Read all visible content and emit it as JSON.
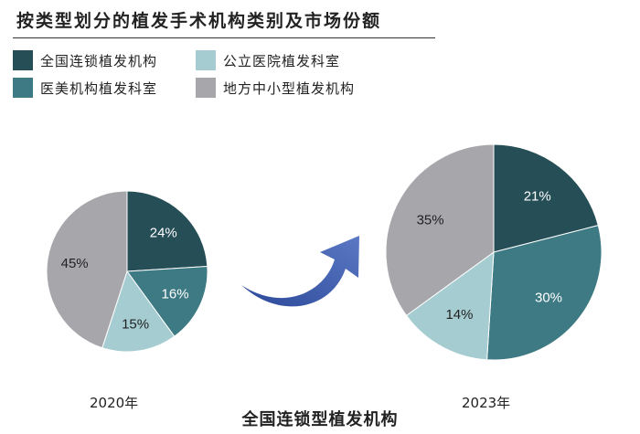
{
  "title": "按类型划分的植发手术机构类别及市场份额",
  "legend": [
    {
      "label": "全国连锁植发机构",
      "color": "#264e57"
    },
    {
      "label": "公立医院植发科室",
      "color": "#a5ccd1"
    },
    {
      "label": "医美机构植发科室",
      "color": "#3e7a83"
    },
    {
      "label": "地方中小型植发机构",
      "color": "#a7a7ab"
    }
  ],
  "caption": "全国连锁型植发机构",
  "chart_data": [
    {
      "type": "pie",
      "label": "2020年",
      "categories": [
        "全国连锁植发机构",
        "医美机构植发科室",
        "公立医院植发科室",
        "地方中小型植发机构"
      ],
      "values": [
        24,
        16,
        15,
        45
      ],
      "value_labels": [
        "24%",
        "16%",
        "15%",
        "45%"
      ],
      "colors": [
        "#264e57",
        "#3e7a83",
        "#a5ccd1",
        "#a7a7ab"
      ]
    },
    {
      "type": "pie",
      "label": "2023年",
      "categories": [
        "全国连锁植发机构",
        "医美机构植发科室",
        "公立医院植发科室",
        "地方中小型植发机构"
      ],
      "values": [
        21,
        30,
        14,
        35
      ],
      "value_labels": [
        "21%",
        "30%",
        "14%",
        "35%"
      ],
      "colors": [
        "#264e57",
        "#3e7a83",
        "#a5ccd1",
        "#a7a7ab"
      ]
    }
  ]
}
